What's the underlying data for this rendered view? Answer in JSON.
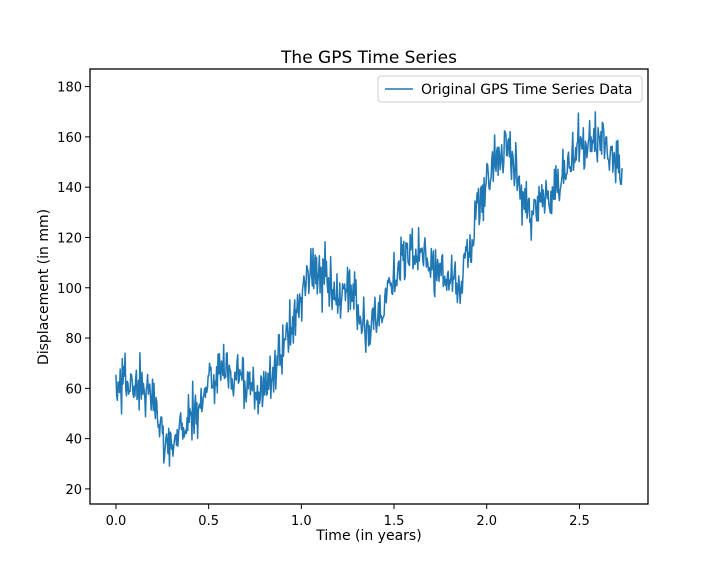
{
  "chart_data": {
    "type": "line",
    "title": "The GPS Time Series",
    "xlabel": "Time (in years)",
    "ylabel": "Displacement (in mm)",
    "xlim": [
      -0.14,
      2.87
    ],
    "ylim": [
      14,
      187
    ],
    "xticks": [
      0.0,
      0.5,
      1.0,
      1.5,
      2.0,
      2.5
    ],
    "xtick_labels": [
      "0.0",
      "0.5",
      "1.0",
      "1.5",
      "2.0",
      "2.5"
    ],
    "yticks": [
      20,
      40,
      60,
      80,
      100,
      120,
      140,
      160,
      180
    ],
    "ytick_labels": [
      "20",
      "40",
      "60",
      "80",
      "100",
      "120",
      "140",
      "160",
      "180"
    ],
    "grid": false,
    "legend": {
      "placement": "top-right"
    },
    "series": [
      {
        "name": "Original GPS Time Series Data",
        "color": "#1f77b4",
        "trend_knots": [
          [
            0.0,
            60
          ],
          [
            0.05,
            63
          ],
          [
            0.1,
            61
          ],
          [
            0.15,
            58
          ],
          [
            0.2,
            56
          ],
          [
            0.25,
            43
          ],
          [
            0.3,
            38
          ],
          [
            0.35,
            44
          ],
          [
            0.4,
            48
          ],
          [
            0.45,
            53
          ],
          [
            0.5,
            62
          ],
          [
            0.55,
            67
          ],
          [
            0.6,
            68
          ],
          [
            0.65,
            65
          ],
          [
            0.7,
            63
          ],
          [
            0.75,
            55
          ],
          [
            0.8,
            60
          ],
          [
            0.85,
            68
          ],
          [
            0.9,
            75
          ],
          [
            0.95,
            85
          ],
          [
            1.0,
            97
          ],
          [
            1.05,
            108
          ],
          [
            1.1,
            106
          ],
          [
            1.15,
            100
          ],
          [
            1.2,
            93
          ],
          [
            1.25,
            98
          ],
          [
            1.3,
            92
          ],
          [
            1.35,
            85
          ],
          [
            1.4,
            88
          ],
          [
            1.45,
            97
          ],
          [
            1.5,
            105
          ],
          [
            1.55,
            110
          ],
          [
            1.6,
            113
          ],
          [
            1.65,
            115
          ],
          [
            1.7,
            108
          ],
          [
            1.75,
            106
          ],
          [
            1.8,
            104
          ],
          [
            1.85,
            103
          ],
          [
            1.9,
            113
          ],
          [
            1.95,
            130
          ],
          [
            2.0,
            143
          ],
          [
            2.05,
            150
          ],
          [
            2.1,
            155
          ],
          [
            2.15,
            150
          ],
          [
            2.2,
            135
          ],
          [
            2.25,
            130
          ],
          [
            2.3,
            135
          ],
          [
            2.35,
            140
          ],
          [
            2.4,
            145
          ],
          [
            2.45,
            148
          ],
          [
            2.5,
            155
          ],
          [
            2.55,
            158
          ],
          [
            2.6,
            158
          ],
          [
            2.65,
            156
          ],
          [
            2.7,
            152
          ],
          [
            2.73,
            150
          ]
        ],
        "noise_amplitude_mm": 9,
        "point_count": 720
      }
    ]
  }
}
